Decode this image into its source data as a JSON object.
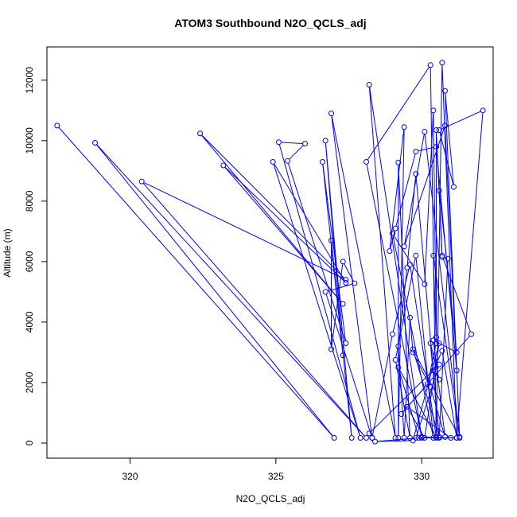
{
  "chart_data": {
    "type": "line",
    "title": "ATOM3 Southbound N2O_QCLS_adj",
    "xlabel": "N2O_QCLS_adj",
    "ylabel": "Altitude (m)",
    "xlim": [
      317.15,
      332.45
    ],
    "ylim": [
      -500,
      13100
    ],
    "x_ticks": [
      320,
      325,
      330
    ],
    "y_ticks": [
      0,
      2000,
      4000,
      6000,
      8000,
      10000,
      12000
    ],
    "series_color": "#0000ff",
    "marker": "open-circle",
    "grid": false,
    "legend": "none",
    "points": [
      [
        317.5,
        10500
      ],
      [
        327.0,
        170
      ],
      [
        318.8,
        9930
      ],
      [
        328.1,
        170
      ],
      [
        320.4,
        8650
      ],
      [
        327.4,
        5400
      ],
      [
        322.4,
        10240
      ],
      [
        327.3,
        4600
      ],
      [
        323.2,
        9180
      ],
      [
        327.4,
        5300
      ],
      [
        324.9,
        9300
      ],
      [
        327.9,
        170
      ],
      [
        325.1,
        9950
      ],
      [
        326.0,
        9900
      ],
      [
        325.4,
        9330
      ],
      [
        327.4,
        3300
      ],
      [
        326.6,
        9300
      ],
      [
        327.3,
        2900
      ],
      [
        326.7,
        10000
      ],
      [
        327.6,
        170
      ],
      [
        326.9,
        6700
      ],
      [
        326.9,
        3100
      ],
      [
        327.3,
        6000
      ],
      [
        327.7,
        5280
      ],
      [
        326.7,
        5000
      ],
      [
        328.3,
        170
      ],
      [
        326.9,
        10900
      ],
      [
        329.1,
        170
      ],
      [
        328.2,
        11850
      ],
      [
        330.0,
        170
      ],
      [
        328.1,
        9300
      ],
      [
        330.3,
        12500
      ],
      [
        330.5,
        170
      ],
      [
        330.7,
        12580
      ],
      [
        331.2,
        170
      ],
      [
        332.1,
        11000
      ],
      [
        330.6,
        10350
      ],
      [
        331.1,
        8470
      ],
      [
        330.8,
        11650
      ],
      [
        331.3,
        200
      ],
      [
        330.1,
        10300
      ],
      [
        329.4,
        6500
      ],
      [
        330.8,
        10500
      ],
      [
        331.2,
        2400
      ],
      [
        330.5,
        9800
      ],
      [
        329.8,
        9640
      ],
      [
        329.1,
        7100
      ],
      [
        328.9,
        6350
      ],
      [
        329.4,
        10450
      ],
      [
        329.2,
        170
      ],
      [
        329.2,
        9280
      ],
      [
        329.6,
        170
      ],
      [
        329.1,
        2750
      ],
      [
        329.8,
        6200
      ],
      [
        330.4,
        170
      ],
      [
        329.0,
        6930
      ],
      [
        330.1,
        5250
      ],
      [
        330.4,
        11000
      ],
      [
        330.5,
        3500
      ],
      [
        330.5,
        10350
      ],
      [
        330.7,
        6150
      ],
      [
        330.9,
        6100
      ],
      [
        330.6,
        170
      ],
      [
        329.8,
        8900
      ],
      [
        329.5,
        5800
      ],
      [
        329.2,
        3200
      ],
      [
        329.4,
        170
      ],
      [
        329.6,
        4150
      ],
      [
        329.7,
        3000
      ],
      [
        330.3,
        1850
      ],
      [
        330.8,
        200
      ],
      [
        330.4,
        3400
      ],
      [
        331.2,
        3000
      ],
      [
        330.6,
        8350
      ],
      [
        330.7,
        6200
      ],
      [
        331.7,
        3600
      ],
      [
        329.3,
        960
      ],
      [
        330.2,
        1950
      ],
      [
        330.5,
        3300
      ],
      [
        330.4,
        6200
      ],
      [
        331.3,
        170
      ],
      [
        329.7,
        3100
      ],
      [
        330.6,
        200
      ],
      [
        330.3,
        3300
      ],
      [
        330.6,
        2100
      ],
      [
        330.4,
        2400
      ],
      [
        330.7,
        3050
      ],
      [
        331.2,
        170
      ],
      [
        329.8,
        170
      ],
      [
        330.6,
        2600
      ],
      [
        328.2,
        320
      ],
      [
        328.3,
        170
      ],
      [
        329.0,
        3600
      ],
      [
        329.6,
        5900
      ],
      [
        330.5,
        200
      ],
      [
        329.2,
        2500
      ],
      [
        329.9,
        170
      ],
      [
        328.4,
        50
      ],
      [
        329.7,
        80
      ],
      [
        330.6,
        3300
      ],
      [
        330.1,
        170
      ],
      [
        329.5,
        1200
      ],
      [
        331.0,
        170
      ],
      [
        330.0,
        200
      ]
    ]
  }
}
